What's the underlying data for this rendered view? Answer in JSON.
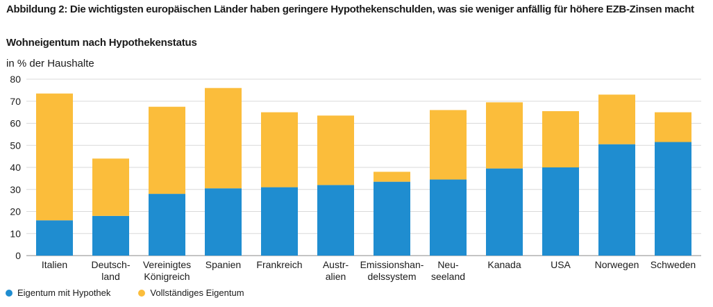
{
  "header": {
    "title": "Abbildung 2: Die wichtigsten europäischen Länder haben geringere Hypothekenschulden, was sie weniger anfällig für höhere EZB-Zinsen macht",
    "subtitle": "Wohneigentum nach Hypothekenstatus",
    "unit": "in % der Haushalte"
  },
  "colors": {
    "mortgage": "#1f8dd0",
    "outright": "#fbbd3b",
    "grid": "#d9d9d9"
  },
  "chart_data": {
    "type": "bar",
    "stacked": true,
    "title": "Wohneigentum nach Hypothekenstatus",
    "ylabel": "in % der Haushalte",
    "ylim": [
      0,
      80
    ],
    "yticks": [
      0,
      10,
      20,
      30,
      40,
      50,
      60,
      70,
      80
    ],
    "grid": true,
    "legend_position": "bottom-left",
    "categories": [
      [
        "Italien"
      ],
      [
        "Deutsch-",
        "land"
      ],
      [
        "Vereinigtes",
        "Königreich"
      ],
      [
        "Spanien"
      ],
      [
        "Frankreich"
      ],
      [
        "Austr-",
        "alien"
      ],
      [
        "Emissionshan-",
        "delssystem"
      ],
      [
        "Neu-",
        "seeland"
      ],
      [
        "Kanada"
      ],
      [
        "USA"
      ],
      [
        "Norwegen"
      ],
      [
        "Schweden"
      ]
    ],
    "series": [
      {
        "name": "Eigentum mit Hypothek",
        "color": "#1f8dd0",
        "values": [
          16,
          18,
          28,
          30.5,
          31,
          32,
          33.5,
          34.5,
          39.5,
          40,
          50.5,
          51.5
        ]
      },
      {
        "name": "Vollständiges Eigentum",
        "color": "#fbbd3b",
        "values": [
          57.5,
          26,
          39.5,
          45.5,
          34,
          31.5,
          4.5,
          31.5,
          30,
          25.5,
          22.5,
          13.5
        ]
      }
    ]
  },
  "legend": [
    {
      "label": "Eigentum mit Hypothek",
      "color": "#1f8dd0"
    },
    {
      "label": "Vollständiges Eigentum",
      "color": "#fbbd3b"
    }
  ]
}
